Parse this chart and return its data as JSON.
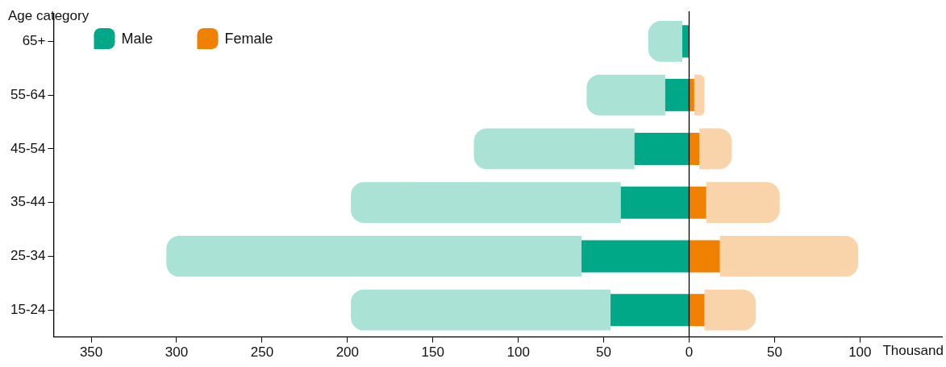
{
  "chart_data": {
    "type": "bar",
    "orientation": "horizontal",
    "xlabel": "Thousand",
    "ylabel": "Age category",
    "categories": [
      "65+",
      "55-64",
      "45-54",
      "35-44",
      "25-34",
      "15-24"
    ],
    "series": [
      {
        "name": "Male",
        "color": "#00a887",
        "values": [
          -4,
          -14,
          -32,
          -40,
          -63,
          -46
        ]
      },
      {
        "name": "Female",
        "color": "#f08000",
        "values": [
          null,
          3,
          6,
          10,
          18,
          9
        ]
      },
      {
        "color": "#abe2d6",
        "values": [
          -20,
          -46,
          -94,
          -158,
          -243,
          -152
        ]
      },
      {
        "color": "#f9d4ab",
        "values": [
          null,
          6,
          19,
          43,
          81,
          30
        ]
      }
    ],
    "stacked": true,
    "xlim": [
      -372,
      148
    ],
    "xticks": [
      {
        "value": -350,
        "label": "350"
      },
      {
        "value": -300,
        "label": "300"
      },
      {
        "value": -250,
        "label": "250"
      },
      {
        "value": -200,
        "label": "200"
      },
      {
        "value": -150,
        "label": "150"
      },
      {
        "value": -100,
        "label": "100"
      },
      {
        "value": -50,
        "label": "50"
      },
      0,
      50,
      100
    ],
    "ref_lines": [
      {
        "axis": "x",
        "value": 0,
        "color": "#000000"
      }
    ],
    "grid": false,
    "legend": "top left"
  }
}
